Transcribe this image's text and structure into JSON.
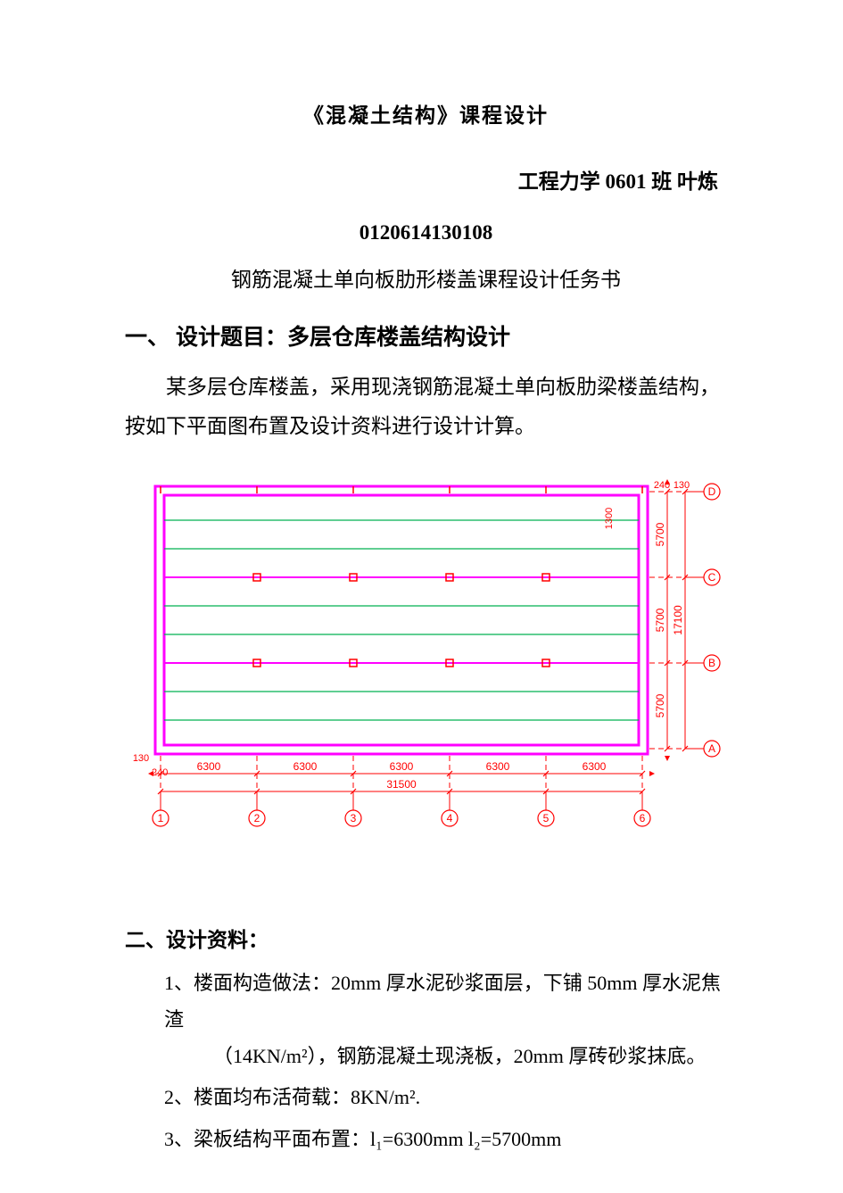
{
  "header": {
    "main_title": "《混凝土结构》课程设计",
    "byline": "工程力学 0601 班  叶炼",
    "student_id": "0120614130108",
    "subtitle": "钢筋混凝土单向板肋形楼盖课程设计任务书"
  },
  "section1": {
    "heading": "一、 设计题目：多层仓库楼盖结构设计",
    "paragraph": "某多层仓库楼盖，采用现浇钢筋混凝土单向板肋梁楼盖结构，按如下平面图布置及设计资料进行设计计算。"
  },
  "diagram": {
    "type": "floor-plan",
    "outer_color": "#ff00ff",
    "inner_color": "#ff00ff",
    "beam_line_color": "#00b050",
    "column_color": "#ff0000",
    "dim_color": "#ff0000",
    "axis_label_color": "#ff0000",
    "h_spans": [
      "6300",
      "6300",
      "6300",
      "6300",
      "6300"
    ],
    "h_total": "31500",
    "h_edge_left": "130",
    "h_edge_leftpad": "240",
    "v_spans": [
      "5700",
      "5700",
      "5700"
    ],
    "v_total": "17100",
    "v_top1": "240",
    "v_top2": "130",
    "v_label_upper": "1300",
    "axis_h": [
      "1",
      "2",
      "3",
      "4",
      "5",
      "6"
    ],
    "axis_v": [
      "A",
      "B",
      "C",
      "D"
    ],
    "bg": "#ffffff",
    "line_w_outer": 3,
    "line_w_inner": 3,
    "line_w_beam": 1.2,
    "col_size": 8
  },
  "section2": {
    "heading": "二、设计资料：",
    "items": [
      {
        "num": "1、",
        "text_a": "楼面构造做法：20mm 厚水泥砂浆面层，下铺 50mm 厚水泥焦渣",
        "text_b": "（14KN/m²），钢筋混凝土现浇板，20mm 厚砖砂浆抹底。"
      },
      {
        "num": "2、",
        "text_a": "楼面均布活荷载：8KN/m²."
      },
      {
        "num": "3、",
        "text_a": "梁板结构平面布置：l₁=6300mm  l₂=5700mm"
      }
    ]
  }
}
